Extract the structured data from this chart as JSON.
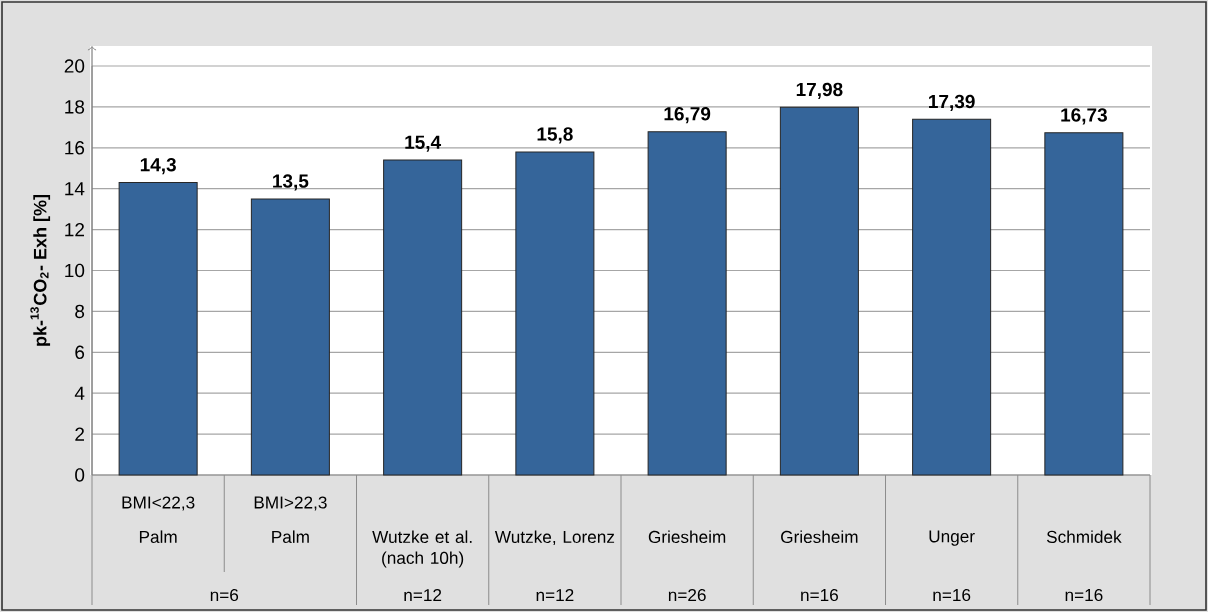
{
  "chart_data": {
    "type": "bar",
    "ylabel": "pk-$^{13}$CO$_{2}$- Exh [%]",
    "categories": [
      "Palm",
      "Palm",
      "Wutzke et al. (nach 10h)",
      "Wutzke, Lorenz",
      "Griesheim",
      "Griesheim",
      "Unger",
      "Schmidek"
    ],
    "values": [
      14.3,
      13.5,
      15.4,
      15.8,
      16.79,
      17.98,
      17.39,
      16.73
    ],
    "value_labels": [
      "14,3",
      "13,5",
      "15,4",
      "15,8",
      "16,79",
      "17,98",
      "17,39",
      "16,73"
    ],
    "color": "#35659a",
    "ylim": [
      0,
      20
    ],
    "yticks": [
      0,
      2,
      4,
      6,
      8,
      10,
      12,
      14,
      16,
      18,
      20
    ],
    "grid": "y",
    "annotations": [
      "BMI<22,3",
      "BMI>22,3",
      "n=6",
      "n=12",
      "n=12",
      "n=26",
      "n=16",
      "n=16",
      "n=16"
    ]
  }
}
